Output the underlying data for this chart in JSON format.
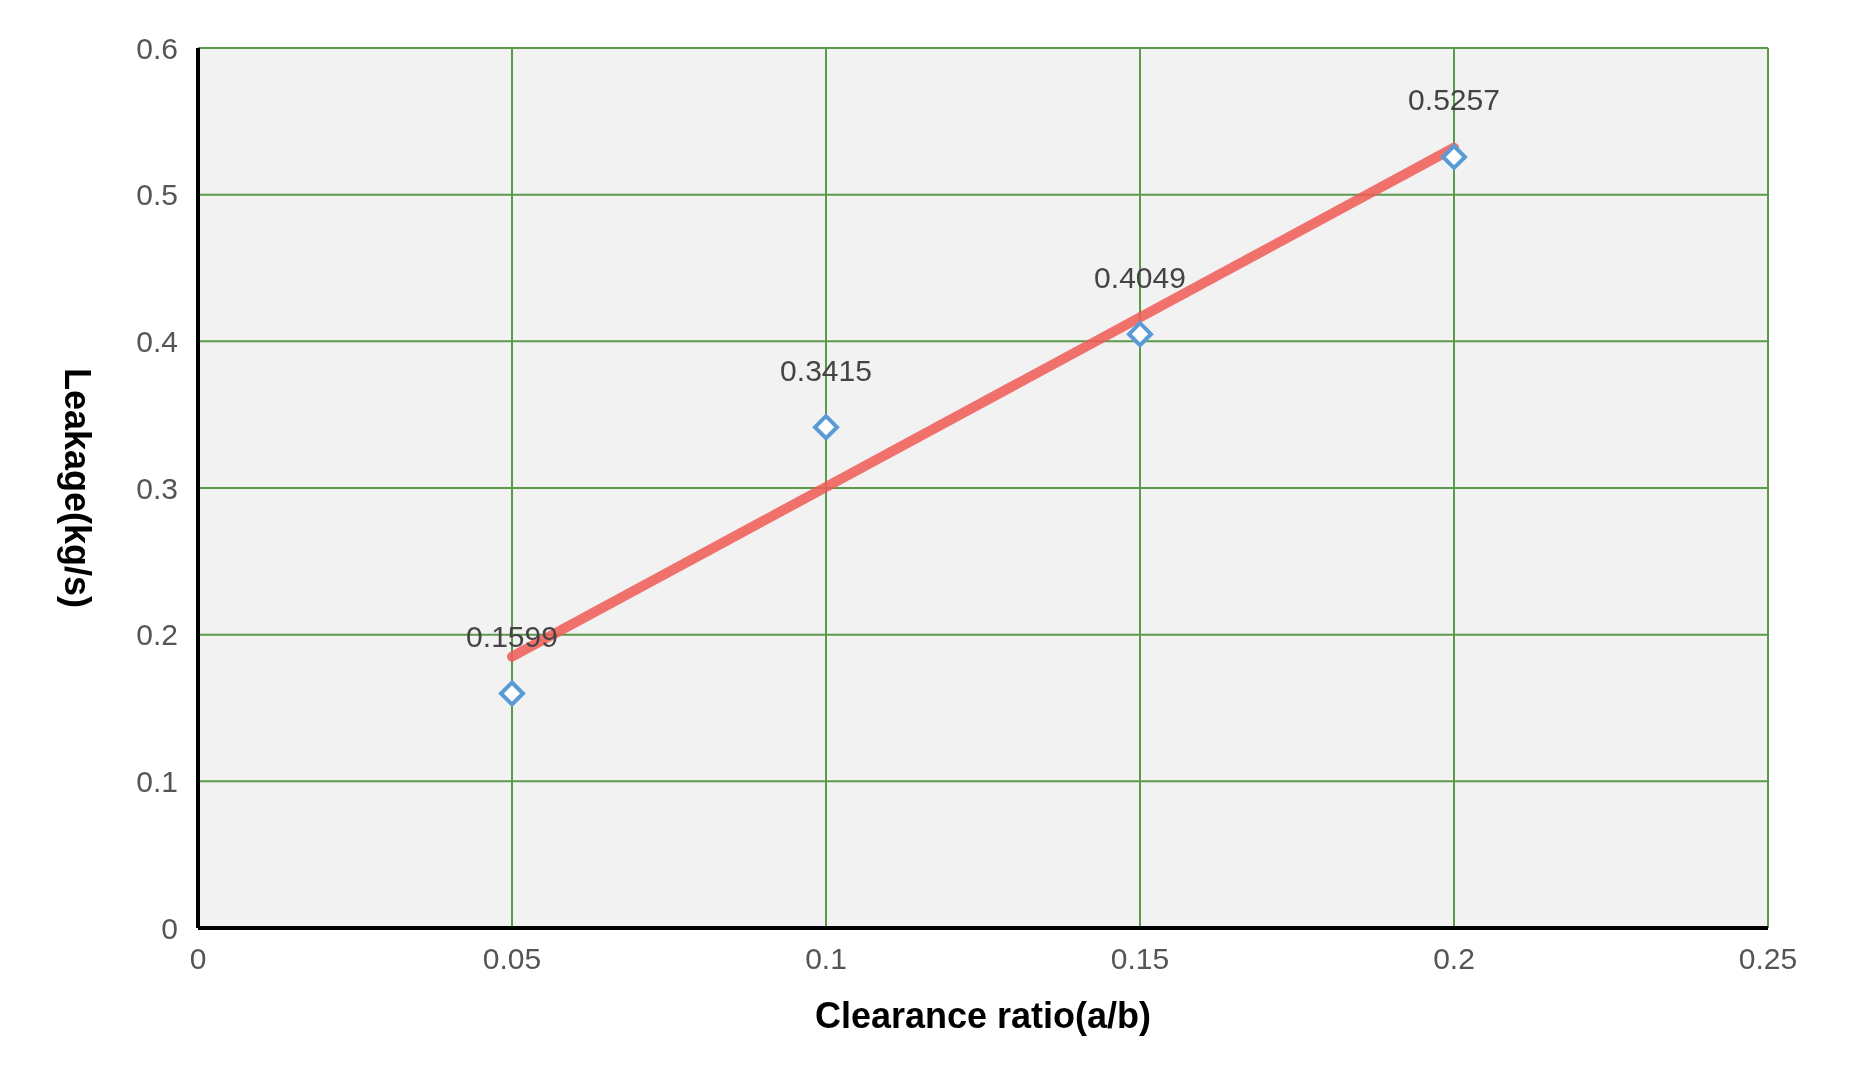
{
  "chart_data": {
    "type": "scatter",
    "xlabel": "Clearance ratio(a/b)",
    "ylabel": "Leakage(kg/s)",
    "x": [
      0.05,
      0.1,
      0.15,
      0.2
    ],
    "xlim": [
      0,
      0.25
    ],
    "xticks": [
      0,
      0.05,
      0.1,
      0.15,
      0.2,
      0.25
    ],
    "ylim": [
      0,
      0.6
    ],
    "yticks": [
      0,
      0.1,
      0.2,
      0.3,
      0.4,
      0.5,
      0.6
    ],
    "grid": true,
    "series": [
      {
        "color": "#5b9bd5",
        "marker": "diamond",
        "values": [
          0.1599,
          0.3415,
          0.4049,
          0.5257
        ],
        "value_labels": [
          "0.1599",
          "0.3415",
          "0.4049",
          "0.5257"
        ]
      },
      {
        "type": "line",
        "x": [
          0.05,
          0.2
        ],
        "values": [
          0.185,
          0.532
        ],
        "color": "#f05a55"
      }
    ]
  }
}
